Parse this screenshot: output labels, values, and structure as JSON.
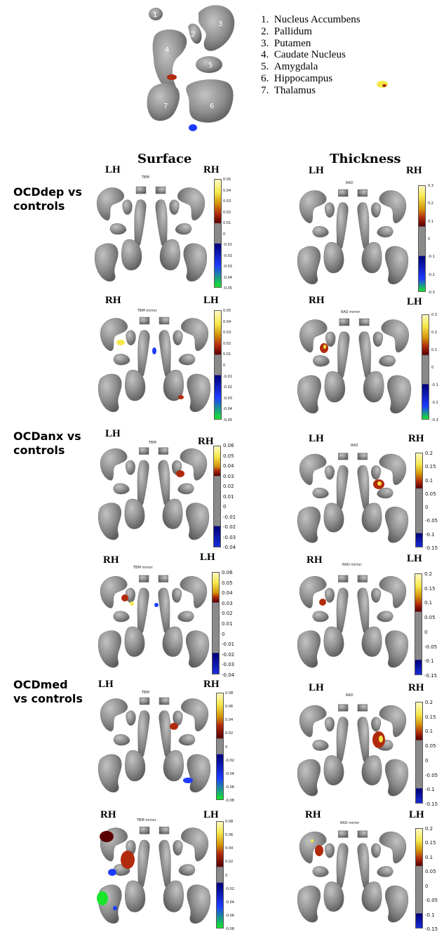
{
  "structure_legend": [
    {
      "num": "1.",
      "name": "Nucleus Accumbens"
    },
    {
      "num": "2.",
      "name": "Pallidum"
    },
    {
      "num": "3.",
      "name": "Putamen"
    },
    {
      "num": "4.",
      "name": "Caudate Nucleus"
    },
    {
      "num": "5.",
      "name": "Amygdala"
    },
    {
      "num": "6.",
      "name": "Hippocampus"
    },
    {
      "num": "7.",
      "name": "Thalamus"
    }
  ],
  "labels": [
    "1",
    "2",
    "3",
    "4",
    "5",
    "6",
    "7"
  ],
  "columns": {
    "surface": "Surface",
    "thickness": "Thickness"
  },
  "hemi": {
    "lh": "LH",
    "rh": "RH"
  },
  "rows": {
    "ocddep": [
      "OCDdep vs",
      "controls"
    ],
    "ocdanx": [
      "OCDanx vs",
      "controls"
    ],
    "ocdmed": [
      "OCDmed",
      "vs controls"
    ]
  },
  "panel_titles": {
    "tbm": "TBM",
    "tbm_mirror": "TBM mirror",
    "rad": "RAD",
    "rad_mirror": "RAD mirror"
  },
  "scales": {
    "dep_tbm": {
      "ticks": [
        "0.05",
        "0.04",
        "0.03",
        "0.02",
        "0.01",
        "0",
        "-0.01",
        "-0.02",
        "-0.03",
        "-0.04",
        "-0.05"
      ]
    },
    "dep_rad": {
      "ticks": [
        "0.3",
        "0.2",
        "0.1",
        "0",
        "-0.1",
        "-0.2",
        "-0.3"
      ]
    },
    "anx_tbm": {
      "ticks": [
        "0.06",
        "0.05",
        "0.04",
        "0.03",
        "0.02",
        "0.01",
        "0",
        "-0.01",
        "-0.02",
        "-0.03",
        "-0.04"
      ]
    },
    "anx_rad": {
      "ticks": [
        "0.2",
        "0.15",
        "0.1",
        "0.05",
        "0",
        "-0.05",
        "-0.1",
        "-0.15"
      ]
    },
    "med_tbm": {
      "ticks": [
        "0.08",
        "0.06",
        "0.04",
        "0.02",
        "0",
        "-0.02",
        "-0.04",
        "-0.06",
        "-0.08"
      ]
    },
    "med_rad": {
      "ticks": [
        "0.2",
        "0.15",
        "0.1",
        "0.05",
        "0",
        "-0.05",
        "-0.1",
        "-0.15"
      ]
    }
  },
  "colors": {
    "structure": "#8e8e8e",
    "structure_light": "#bdbdbd",
    "positive_high": "#f5e94a",
    "positive_mid": "#b22a0c",
    "positive_low": "#5a0000",
    "neutral": "#8a8a8a",
    "negative_low": "#00007a",
    "negative_mid": "#1e3cff",
    "negative_high": "#18e62a"
  }
}
